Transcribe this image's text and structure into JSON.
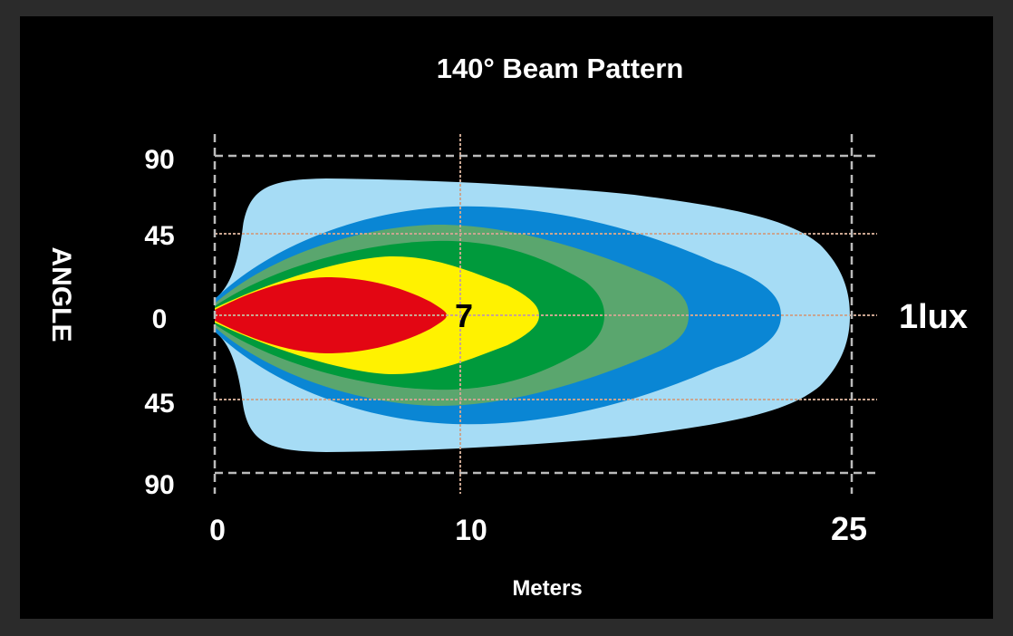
{
  "chart_data": {
    "type": "area",
    "title": "140° Beam Pattern",
    "xlabel": "Meters",
    "ylabel": "ANGLE",
    "x_ticks": [
      "0",
      "10",
      "25"
    ],
    "x_tick_values": [
      0,
      10,
      25
    ],
    "y_ticks": [
      "90",
      "45",
      "0",
      "45",
      "90"
    ],
    "y_tick_values": [
      90,
      45,
      0,
      -45,
      -90
    ],
    "xlim": [
      0,
      25
    ],
    "ylim": [
      -90,
      90
    ],
    "grid": true,
    "annotations": {
      "inner": "7",
      "outer": "1lux"
    },
    "contours": [
      {
        "color": "#a6dcf5",
        "reach_m": 25
      },
      {
        "color": "#0a86d4",
        "reach_m": 22.5
      },
      {
        "color": "#5aa66e",
        "reach_m": 19
      },
      {
        "color": "#009a3c",
        "reach_m": 15.5
      },
      {
        "color": "#fff200",
        "reach_m": 13
      },
      {
        "color": "#e30613",
        "reach_m": 9.5
      }
    ]
  }
}
